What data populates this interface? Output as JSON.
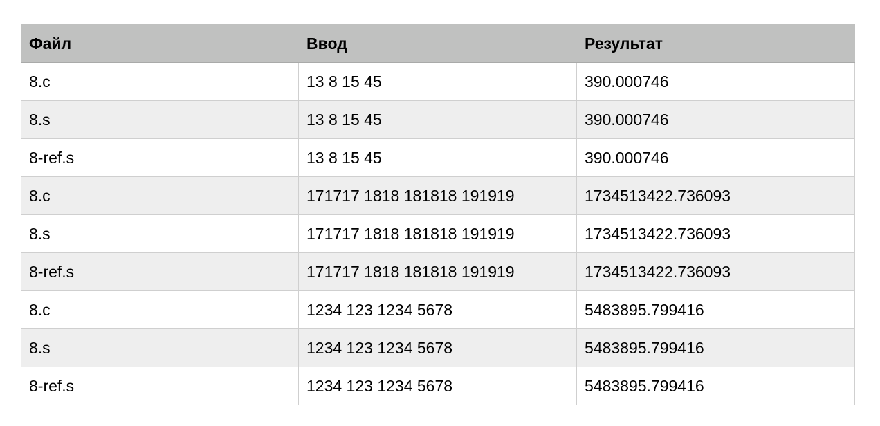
{
  "table": {
    "headers": [
      "Файл",
      "Ввод",
      "Результат"
    ],
    "rows": [
      [
        "8.c",
        "13 8 15 45",
        "390.000746"
      ],
      [
        "8.s",
        "13 8 15 45",
        "390.000746"
      ],
      [
        "8-ref.s",
        "13 8 15 45",
        "390.000746"
      ],
      [
        "8.c",
        "171717 1818 181818 191919",
        "1734513422.736093"
      ],
      [
        "8.s",
        "171717 1818 181818 191919",
        "1734513422.736093"
      ],
      [
        "8-ref.s",
        "171717 1818 181818 191919",
        "1734513422.736093"
      ],
      [
        "8.c",
        "1234 123 1234 5678",
        "5483895.799416"
      ],
      [
        "8.s",
        "1234 123 1234 5678",
        "5483895.799416"
      ],
      [
        "8-ref.s",
        "1234 123 1234 5678",
        "5483895.799416"
      ]
    ]
  },
  "colors": {
    "header_bg": "#c0c1c0",
    "row_even_bg": "#eeeeee",
    "row_odd_bg": "#ffffff",
    "border": "#cfcfcf"
  }
}
